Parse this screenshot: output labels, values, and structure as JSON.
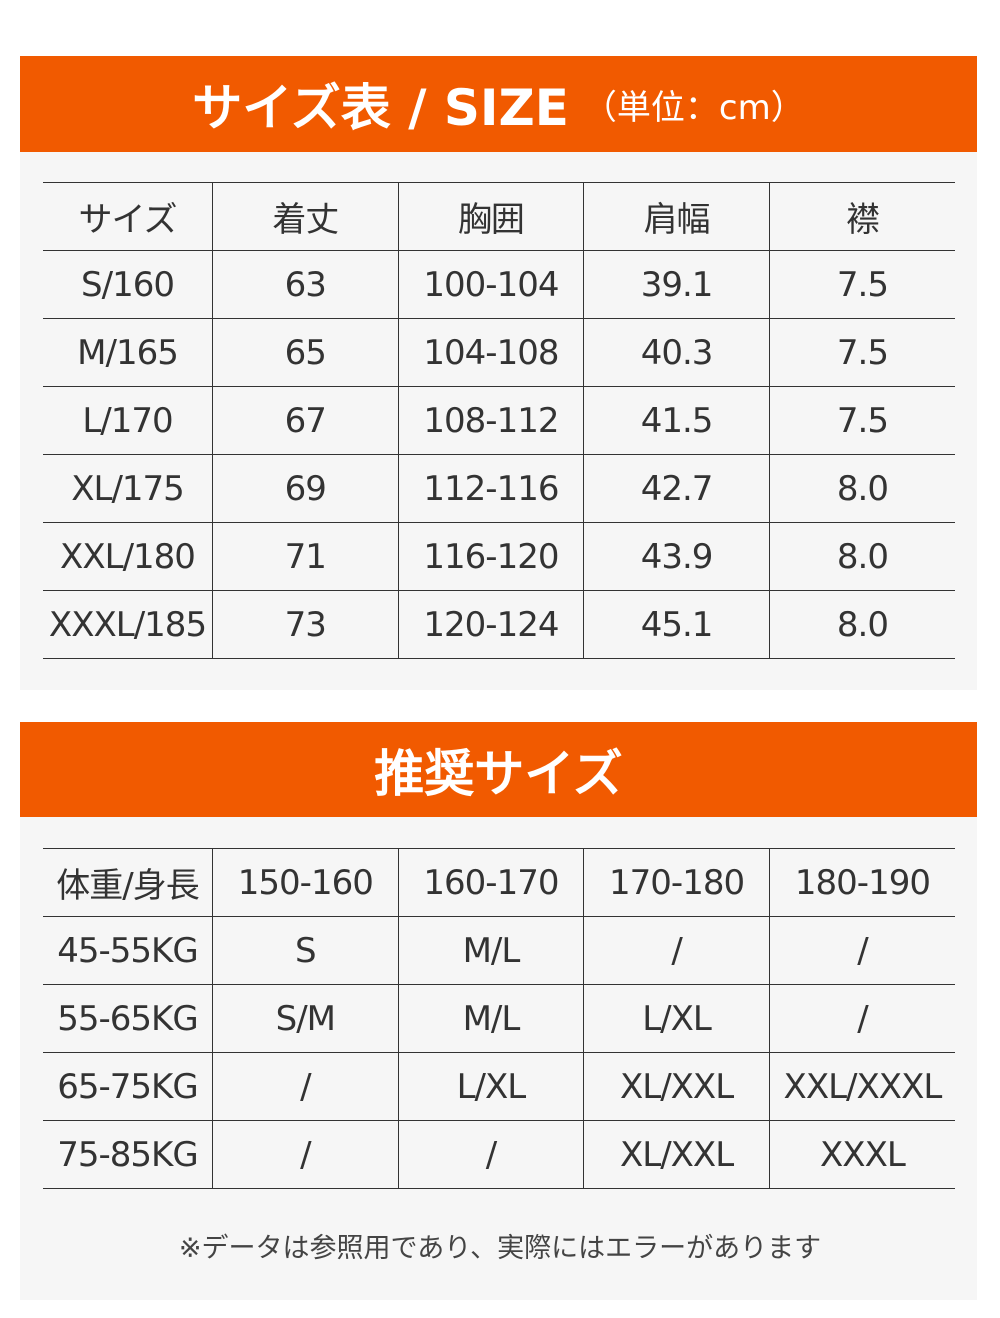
{
  "size_chart": {
    "title": "サイズ表 / SIZE",
    "unit": "（単位：cm）",
    "headers": [
      "サイズ",
      "着丈",
      "胸囲",
      "肩幅",
      "襟"
    ],
    "rows": [
      [
        "S/160",
        "63",
        "100-104",
        "39.1",
        "7.5"
      ],
      [
        "M/165",
        "65",
        "104-108",
        "40.3",
        "7.5"
      ],
      [
        "L/170",
        "67",
        "108-112",
        "41.5",
        "7.5"
      ],
      [
        "XL/175",
        "69",
        "112-116",
        "42.7",
        "8.0"
      ],
      [
        "XXL/180",
        "71",
        "116-120",
        "43.9",
        "8.0"
      ],
      [
        "XXXL/185",
        "73",
        "120-124",
        "45.1",
        "8.0"
      ]
    ]
  },
  "recommended": {
    "title": "推奨サイズ",
    "headers": [
      "体重/身長",
      "150-160",
      "160-170",
      "170-180",
      "180-190"
    ],
    "rows": [
      [
        "45-55KG",
        "S",
        "M/L",
        "/",
        "/"
      ],
      [
        "55-65KG",
        "S/M",
        "M/L",
        "L/XL",
        "/"
      ],
      [
        "65-75KG",
        "/",
        "L/XL",
        "XL/XXL",
        "XXL/XXXL"
      ],
      [
        "75-85KG",
        "/",
        "/",
        "XL/XXL",
        "XXXL"
      ]
    ],
    "note": "※データは参照用であり、実際にはエラーがあります"
  },
  "colors": {
    "accent": "#f15a00",
    "panel": "#f6f6f6",
    "text": "#333333"
  }
}
